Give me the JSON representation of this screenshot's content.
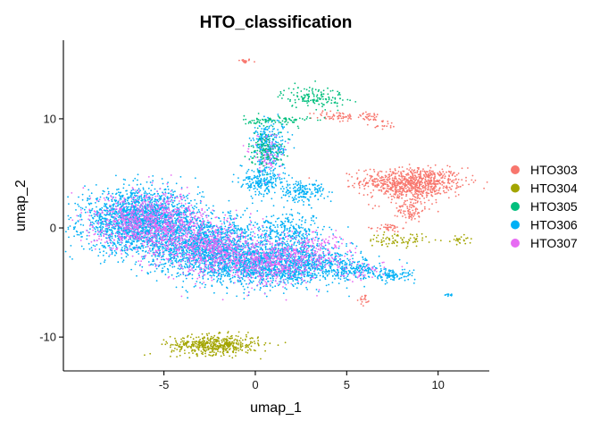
{
  "chart_data": {
    "type": "scatter",
    "title": "HTO_classification",
    "xlabel": "umap_1",
    "ylabel": "umap_2",
    "xlim": [
      -10.5,
      12.8
    ],
    "ylim": [
      -13.1,
      17.2
    ],
    "xticks": [
      -5,
      0,
      5,
      10
    ],
    "yticks": [
      -10,
      0,
      10
    ],
    "grid": false,
    "legend_position": "right",
    "series": [
      {
        "name": "HTO303",
        "color": "#F8766D"
      },
      {
        "name": "HTO304",
        "color": "#A3A500"
      },
      {
        "name": "HTO305",
        "color": "#00BF7D"
      },
      {
        "name": "HTO306",
        "color": "#00B0F6"
      },
      {
        "name": "HTO307",
        "color": "#E76BF3"
      }
    ],
    "clusters": [
      {
        "series": "HTO303",
        "center": [
          -0.6,
          15.3
        ],
        "spread": [
          0.2,
          0.1
        ],
        "n": 18
      },
      {
        "series": "HTO303",
        "center": [
          8.6,
          4.3
        ],
        "spread": [
          1.4,
          0.6
        ],
        "n": 650
      },
      {
        "series": "HTO303",
        "center": [
          8.5,
          3.3
        ],
        "spread": [
          1.1,
          0.6
        ],
        "n": 200
      },
      {
        "series": "HTO303",
        "center": [
          8.5,
          1.6
        ],
        "spread": [
          0.35,
          0.5
        ],
        "n": 80
      },
      {
        "series": "HTO303",
        "center": [
          7.3,
          0.0
        ],
        "spread": [
          0.35,
          0.18
        ],
        "n": 40
      },
      {
        "series": "HTO303",
        "center": [
          4.4,
          10.2
        ],
        "spread": [
          0.6,
          0.25
        ],
        "n": 55
      },
      {
        "series": "HTO303",
        "center": [
          6.3,
          10.2
        ],
        "spread": [
          0.4,
          0.2
        ],
        "n": 30
      },
      {
        "series": "HTO303",
        "center": [
          7.0,
          9.5
        ],
        "spread": [
          0.35,
          0.25
        ],
        "n": 20
      },
      {
        "series": "HTO303",
        "center": [
          6.0,
          -6.6
        ],
        "spread": [
          0.15,
          0.25
        ],
        "n": 18
      },
      {
        "series": "HTO304",
        "center": [
          -2.2,
          -10.7
        ],
        "spread": [
          1.2,
          0.45
        ],
        "n": 500
      },
      {
        "series": "HTO304",
        "center": [
          7.8,
          -1.1
        ],
        "spread": [
          0.8,
          0.3
        ],
        "n": 80
      },
      {
        "series": "HTO304",
        "center": [
          11.2,
          -1.1
        ],
        "spread": [
          0.35,
          0.2
        ],
        "n": 25
      },
      {
        "series": "HTO305",
        "center": [
          3.2,
          12.0
        ],
        "spread": [
          0.9,
          0.5
        ],
        "n": 140
      },
      {
        "series": "HTO305",
        "center": [
          1.2,
          9.8
        ],
        "spread": [
          0.9,
          0.25
        ],
        "n": 90
      },
      {
        "series": "HTO305",
        "center": [
          0.6,
          7.2
        ],
        "spread": [
          0.5,
          0.8
        ],
        "n": 120
      },
      {
        "series": "HTO306",
        "center": [
          -6.2,
          0.6
        ],
        "spread": [
          1.6,
          1.4
        ],
        "n": 2200
      },
      {
        "series": "HTO306",
        "center": [
          -2.6,
          -1.8
        ],
        "spread": [
          1.6,
          1.3
        ],
        "n": 1500
      },
      {
        "series": "HTO306",
        "center": [
          0.8,
          -3.4
        ],
        "spread": [
          1.6,
          1.0
        ],
        "n": 1200
      },
      {
        "series": "HTO306",
        "center": [
          3.5,
          -3.2
        ],
        "spread": [
          1.3,
          0.7
        ],
        "n": 350
      },
      {
        "series": "HTO306",
        "center": [
          0.8,
          7.6
        ],
        "spread": [
          0.5,
          1.2
        ],
        "n": 300
      },
      {
        "series": "HTO306",
        "center": [
          0.4,
          4.2
        ],
        "spread": [
          0.6,
          0.6
        ],
        "n": 200
      },
      {
        "series": "HTO306",
        "center": [
          2.6,
          3.3
        ],
        "spread": [
          0.6,
          0.5
        ],
        "n": 160
      },
      {
        "series": "HTO306",
        "center": [
          5.4,
          -3.9
        ],
        "spread": [
          0.9,
          0.4
        ],
        "n": 140
      },
      {
        "series": "HTO306",
        "center": [
          7.5,
          -4.4
        ],
        "spread": [
          0.6,
          0.3
        ],
        "n": 100
      },
      {
        "series": "HTO306",
        "center": [
          2.0,
          -0.6
        ],
        "spread": [
          1.0,
          0.9
        ],
        "n": 300
      },
      {
        "series": "HTO306",
        "center": [
          10.5,
          -6.2
        ],
        "spread": [
          0.2,
          0.1
        ],
        "n": 10
      },
      {
        "series": "HTO307",
        "center": [
          -5.8,
          0.6
        ],
        "spread": [
          1.5,
          1.3
        ],
        "n": 900
      },
      {
        "series": "HTO307",
        "center": [
          -2.4,
          -1.8
        ],
        "spread": [
          1.5,
          1.2
        ],
        "n": 650
      },
      {
        "series": "HTO307",
        "center": [
          1.0,
          -3.2
        ],
        "spread": [
          1.5,
          1.0
        ],
        "n": 500
      },
      {
        "series": "HTO307",
        "center": [
          3.2,
          -2.0
        ],
        "spread": [
          0.9,
          0.8
        ],
        "n": 150
      },
      {
        "series": "HTO307",
        "center": [
          0.8,
          6.8
        ],
        "spread": [
          0.5,
          1.0
        ],
        "n": 90
      },
      {
        "series": "HTO307",
        "center": [
          5.8,
          -4.0
        ],
        "spread": [
          0.8,
          0.4
        ],
        "n": 40
      }
    ]
  }
}
